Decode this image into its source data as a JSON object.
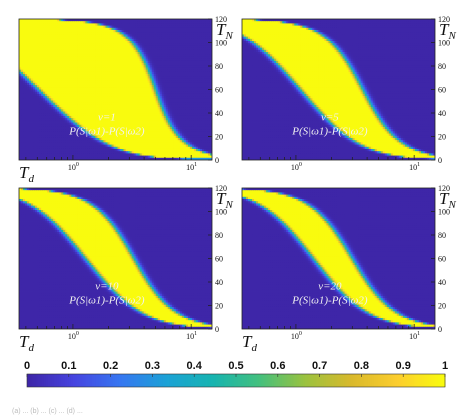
{
  "chart_data": [
    {
      "type": "heatmap",
      "annotation": [
        "v=1",
        "P(S|ω1)-P(S|ω2)"
      ],
      "xlabel": "T",
      "xlabel_sub": "d",
      "ylabel": "T",
      "ylabel_sub": "N",
      "xscale": "log",
      "xlim": [
        0.35,
        15
      ],
      "ylim": [
        0,
        120
      ],
      "yticks": [
        "0",
        "20",
        "40",
        "60",
        "80",
        "100",
        "120"
      ],
      "xticks": [
        {
          "base": "10",
          "exp": "0",
          "value": 1
        },
        {
          "base": "10",
          "exp": "1",
          "value": 10
        }
      ],
      "band": {
        "center_x": 1.6,
        "half_width_decades": 0.45,
        "steepness": 2.2
      }
    },
    {
      "type": "heatmap",
      "annotation": [
        "v=5",
        "P(S|ω1)-P(S|ω2)"
      ],
      "xlabel": "",
      "xlabel_sub": "",
      "ylabel": "T",
      "ylabel_sub": "N",
      "xscale": "log",
      "xlim": [
        0.35,
        15
      ],
      "ylim": [
        0,
        120
      ],
      "yticks": [
        "0",
        "20",
        "40",
        "60",
        "80",
        "100",
        "120"
      ],
      "xticks": [
        {
          "base": "10",
          "exp": "0",
          "value": 1
        },
        {
          "base": "10",
          "exp": "1",
          "value": 10
        }
      ],
      "band": {
        "center_x": 2.0,
        "half_width_decades": 0.22,
        "steepness": 2.2
      }
    },
    {
      "type": "heatmap",
      "annotation": [
        "v=10",
        "P(S|ω1)-P(S|ω2)"
      ],
      "xlabel": "T",
      "xlabel_sub": "d",
      "ylabel": "T",
      "ylabel_sub": "N",
      "xscale": "log",
      "xlim": [
        0.35,
        15
      ],
      "ylim": [
        0,
        120
      ],
      "yticks": [
        "0",
        "20",
        "40",
        "60",
        "80",
        "100",
        "120"
      ],
      "xticks": [
        {
          "base": "10",
          "exp": "0",
          "value": 1
        },
        {
          "base": "10",
          "exp": "1",
          "value": 10
        }
      ],
      "band": {
        "center_x": 2.05,
        "half_width_decades": 0.16,
        "steepness": 2.2
      }
    },
    {
      "type": "heatmap",
      "annotation": [
        "v=20",
        "P(S|ω1)-P(S|ω2)"
      ],
      "xlabel": "T",
      "xlabel_sub": "d",
      "ylabel": "T",
      "ylabel_sub": "N",
      "xscale": "log",
      "xlim": [
        0.35,
        15
      ],
      "ylim": [
        0,
        120
      ],
      "yticks": [
        "0",
        "20",
        "40",
        "60",
        "80",
        "100",
        "120"
      ],
      "xticks": [
        {
          "base": "10",
          "exp": "0",
          "value": 1
        },
        {
          "base": "10",
          "exp": "1",
          "value": 10
        }
      ],
      "band": {
        "center_x": 2.05,
        "half_width_decades": 0.12,
        "steepness": 2.2
      }
    }
  ],
  "colorbar": {
    "ticks": [
      "0",
      "0.1",
      "0.2",
      "0.3",
      "0.4",
      "0.5",
      "0.6",
      "0.7",
      "0.8",
      "0.9",
      "1"
    ],
    "range": [
      0,
      1
    ],
    "colormap": "parula-like",
    "colors": [
      "#3e26a8",
      "#4644e0",
      "#3677f1",
      "#1ba2d6",
      "#17b4b0",
      "#43c07e",
      "#9bc23f",
      "#d9b92c",
      "#fcce2e",
      "#f9fb0e"
    ]
  },
  "caption": "(a) ... (b) ... (c) ... (d) ..."
}
